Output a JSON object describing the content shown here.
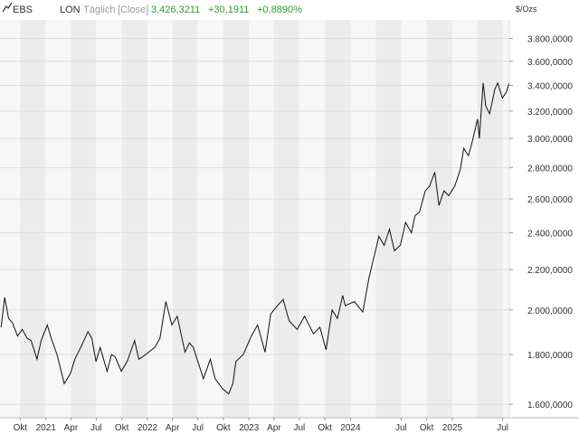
{
  "header": {
    "symbol_icon": "line-chart-icon",
    "symbol": "EBS",
    "exchange": "LON",
    "interval": "Täglich",
    "price_type": "[Close]",
    "last": "3.426,3211",
    "change": "+30,1911",
    "change_pct": "+0,8890%"
  },
  "colors": {
    "positive": "#2e9e2e",
    "band_shade": "#ececec",
    "band_light": "#f7f7f7",
    "line": "#111111",
    "grid": "#dcdcdc"
  },
  "chart_data": {
    "type": "line",
    "title": "",
    "xlabel": "",
    "ylabel": "$/Ozs",
    "grid": true,
    "xlim": [
      "2020-07-20",
      "2025-07-25"
    ],
    "ylim": [
      1550,
      3970
    ],
    "y_scale": "log",
    "y_ticks": [
      1600,
      1800,
      2000,
      2200,
      2400,
      2600,
      2800,
      3000,
      3200,
      3400,
      3600,
      3800
    ],
    "y_tick_labels": [
      "1.600,0000",
      "1.800,0000",
      "2.000,0000",
      "2.200,0000",
      "2.400,0000",
      "2.600,0000",
      "2.800,0000",
      "3.000,0000",
      "3.200,0000",
      "3.400,0000",
      "3.600,0000",
      "3.800,0000"
    ],
    "x_ticks": [
      {
        "date": "2020-10-01",
        "label": "Okt"
      },
      {
        "date": "2021-01-01",
        "label": "2021"
      },
      {
        "date": "2021-04-01",
        "label": "Apr"
      },
      {
        "date": "2021-07-01",
        "label": "Jul"
      },
      {
        "date": "2021-10-01",
        "label": "Okt"
      },
      {
        "date": "2022-01-01",
        "label": "2022"
      },
      {
        "date": "2022-04-01",
        "label": "Apr"
      },
      {
        "date": "2022-07-01",
        "label": "Jul"
      },
      {
        "date": "2022-10-01",
        "label": "Okt"
      },
      {
        "date": "2023-01-01",
        "label": "2023"
      },
      {
        "date": "2023-04-01",
        "label": "Apr"
      },
      {
        "date": "2023-07-01",
        "label": "Jul"
      },
      {
        "date": "2023-10-01",
        "label": "Okt"
      },
      {
        "date": "2024-01-01",
        "label": "2024"
      },
      {
        "date": "2024-07-01",
        "label": "Jul"
      },
      {
        "date": "2024-10-01",
        "label": "Okt"
      },
      {
        "date": "2025-01-01",
        "label": "2025"
      },
      {
        "date": "2025-07-01",
        "label": "Jul"
      }
    ],
    "series": [
      {
        "x": [
          "2020-07-24",
          "2020-08-06",
          "2020-08-20",
          "2020-09-03",
          "2020-09-21",
          "2020-10-08",
          "2020-10-26",
          "2020-11-09",
          "2020-11-30",
          "2020-12-15",
          "2021-01-06",
          "2021-01-20",
          "2021-02-10",
          "2021-03-08",
          "2021-03-30",
          "2021-04-15",
          "2021-05-06",
          "2021-06-01",
          "2021-06-15",
          "2021-06-30",
          "2021-07-15",
          "2021-08-09",
          "2021-08-25",
          "2021-09-07",
          "2021-09-29",
          "2021-10-20",
          "2021-11-16",
          "2021-12-01",
          "2021-12-15",
          "2022-01-05",
          "2022-01-27",
          "2022-02-15",
          "2022-03-08",
          "2022-03-30",
          "2022-04-18",
          "2022-05-16",
          "2022-06-01",
          "2022-06-15",
          "2022-07-21",
          "2022-08-15",
          "2022-09-01",
          "2022-09-28",
          "2022-10-20",
          "2022-11-04",
          "2022-11-15",
          "2022-12-12",
          "2023-01-09",
          "2023-02-01",
          "2023-02-28",
          "2023-03-20",
          "2023-04-13",
          "2023-05-04",
          "2023-05-25",
          "2023-06-23",
          "2023-07-20",
          "2023-08-21",
          "2023-09-13",
          "2023-10-05",
          "2023-10-27",
          "2023-11-15",
          "2023-12-04",
          "2023-12-13",
          "2024-01-15",
          "2024-02-14",
          "2024-03-08",
          "2024-04-12",
          "2024-05-01",
          "2024-05-20",
          "2024-06-07",
          "2024-06-28",
          "2024-07-17",
          "2024-08-07",
          "2024-08-20",
          "2024-09-05",
          "2024-09-26",
          "2024-10-11",
          "2024-10-30",
          "2024-11-14",
          "2024-12-02",
          "2024-12-19",
          "2025-01-10",
          "2025-01-30",
          "2025-02-11",
          "2025-02-28",
          "2025-03-14",
          "2025-04-02",
          "2025-04-08",
          "2025-04-22",
          "2025-05-01",
          "2025-05-15",
          "2025-06-03",
          "2025-06-13",
          "2025-06-30",
          "2025-07-15",
          "2025-07-25"
        ],
        "y": [
          1920,
          2060,
          1960,
          1940,
          1880,
          1910,
          1870,
          1860,
          1780,
          1860,
          1930,
          1870,
          1800,
          1680,
          1720,
          1780,
          1830,
          1900,
          1870,
          1770,
          1830,
          1730,
          1800,
          1790,
          1730,
          1770,
          1860,
          1780,
          1790,
          1810,
          1830,
          1870,
          2040,
          1930,
          1970,
          1810,
          1850,
          1830,
          1700,
          1780,
          1700,
          1660,
          1640,
          1680,
          1770,
          1800,
          1880,
          1930,
          1810,
          1980,
          2020,
          2050,
          1950,
          1910,
          1970,
          1890,
          1920,
          1820,
          2000,
          1960,
          2070,
          2020,
          2040,
          1990,
          2160,
          2380,
          2330,
          2420,
          2300,
          2330,
          2460,
          2400,
          2500,
          2520,
          2650,
          2680,
          2770,
          2560,
          2650,
          2620,
          2680,
          2790,
          2930,
          2880,
          2980,
          3140,
          3000,
          3420,
          3240,
          3180,
          3370,
          3420,
          3300,
          3350,
          3426
        ]
      }
    ]
  }
}
